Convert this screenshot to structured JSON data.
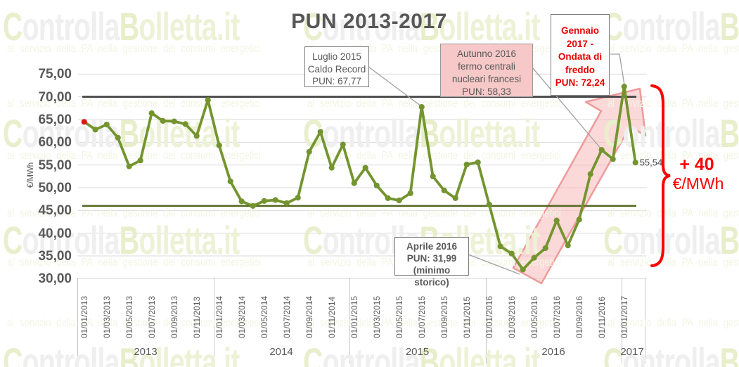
{
  "title": "PUN 2013-2017",
  "watermark": {
    "brand_c": "C",
    "brand_mid": "ontrolla",
    "brand_b": "B",
    "brand_suffix": "olletta.it",
    "tagline": "al servizio della PA nella gestione dei consumi energetici",
    "colors": {
      "c": "#e9efcd",
      "mid": "#efefef",
      "b": "#e7eec9",
      "suffix": "#edf2d6",
      "tagline": "#f3f5e3"
    }
  },
  "axes": {
    "y": {
      "title": "€/MWh",
      "ticks": [
        "75,00",
        "70,00",
        "65,00",
        "60,00",
        "55,00",
        "50,00",
        "45,00",
        "40,00",
        "35,00",
        "30,00"
      ],
      "min": 30,
      "max": 75,
      "step": 5
    },
    "x": {
      "ticks": [
        "01/01/2013",
        "01/03/2013",
        "01/05/2013",
        "01/07/2013",
        "01/09/2013",
        "01/11/2013",
        "01/01/2014",
        "01/03/2014",
        "01/05/2014",
        "01/07/2014",
        "01/09/2014",
        "01/11/2014",
        "01/01/2015",
        "01/03/2015",
        "01/05/2015",
        "01/07/2015",
        "01/09/2015",
        "01/11/2015",
        "01/01/2016",
        "01/03/2016",
        "01/05/2016",
        "01/07/2016",
        "01/09/2016",
        "01/11/2016",
        "01/01/2017"
      ],
      "years": [
        "2013",
        "2014",
        "2015",
        "2016",
        "2017"
      ]
    }
  },
  "chart_data": {
    "type": "line",
    "frequency": "monthly",
    "start": "01/01/2013",
    "end": "01/02/2017",
    "ylim": [
      30,
      75
    ],
    "grid": true,
    "series": [
      {
        "name": "PUN",
        "color": "#74942f",
        "values": [
          64.5,
          62.8,
          63.9,
          61.0,
          54.7,
          56.0,
          66.4,
          64.7,
          64.6,
          64.0,
          61.4,
          69.3,
          59.3,
          51.4,
          47.0,
          46.0,
          47.1,
          47.3,
          46.6,
          47.8,
          57.9,
          62.3,
          54.4,
          59.5,
          51.0,
          54.4,
          50.5,
          47.7,
          47.2,
          48.8,
          67.77,
          52.5,
          49.4,
          47.7,
          55.1,
          55.6,
          46.3,
          37.1,
          35.5,
          31.99,
          34.6,
          36.7,
          42.8,
          37.3,
          43.0,
          53.0,
          58.33,
          56.3,
          72.24,
          55.54
        ]
      }
    ],
    "first_point_color": "#e2150e",
    "last_point_label": "55,54",
    "reference_lines": [
      {
        "value": 70,
        "color": "#3f3f3f"
      },
      {
        "value": 46,
        "color": "#53661e"
      }
    ]
  },
  "annotations": {
    "luglio2015": {
      "lines": [
        "Luglio 2015",
        "Caldo Record",
        "PUN: 67,77"
      ]
    },
    "autunno2016": {
      "lines": [
        "Autunno 2016",
        "fermo centrali",
        "nucleari francesi",
        "PUN: 58,33"
      ]
    },
    "gennaio2017": {
      "lines": [
        "Gennaio",
        "2017  -",
        "Ondata di",
        "freddo",
        "PUN: 72,24"
      ]
    },
    "aprile2016": {
      "lines": [
        "Aprile 2016",
        "PUN: 31,99",
        "(minimo storico)"
      ]
    },
    "increase": {
      "amount": "+ 40",
      "unit": "€/MWh"
    }
  }
}
